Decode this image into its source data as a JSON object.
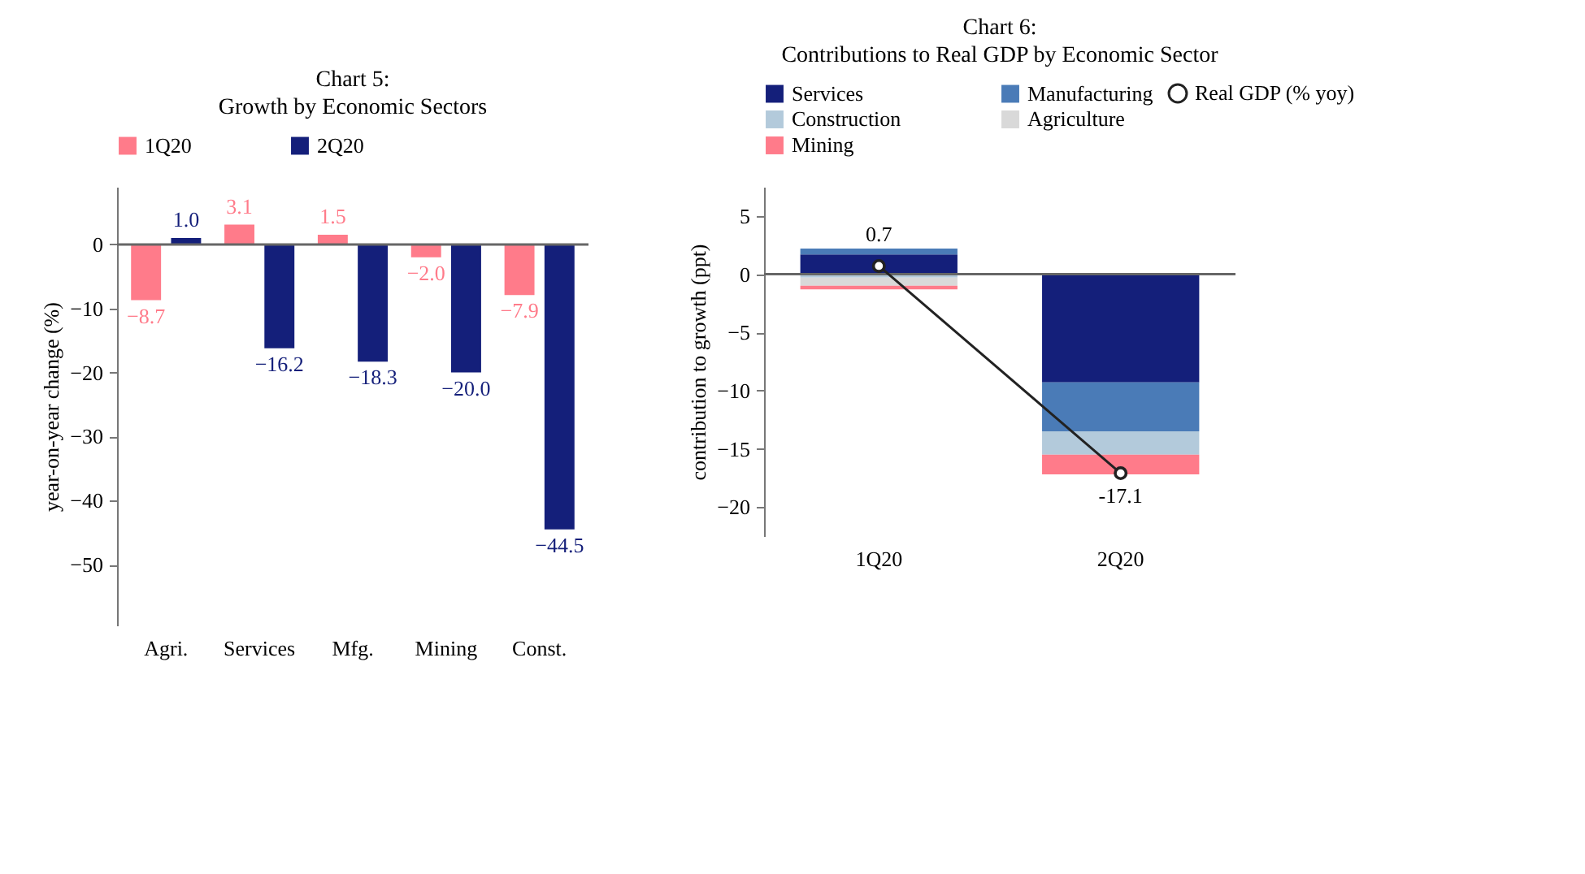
{
  "chart_data": [
    {
      "type": "bar",
      "title": "Chart 5:",
      "subtitle": "Growth by Economic Sectors",
      "ylabel": "year-on-year change (%)",
      "categories": [
        "Agri.",
        "Services",
        "Mfg.",
        "Mining",
        "Const."
      ],
      "series": [
        {
          "name": "1Q20",
          "color": "#ff7b8a",
          "values": [
            -8.7,
            3.1,
            1.5,
            -2.0,
            -7.9
          ],
          "value_labels": [
            "−8.7",
            "3.1",
            "1.5",
            "−2.0",
            "−7.9"
          ]
        },
        {
          "name": "2Q20",
          "color": "#141f7a",
          "values": [
            1.0,
            -16.2,
            -18.3,
            -20.0,
            -44.5
          ],
          "value_labels": [
            "1.0",
            "−16.2",
            "−18.3",
            "−20.0",
            "−44.5"
          ]
        }
      ],
      "ylim": [
        -59.5,
        9
      ],
      "yticks": [
        0,
        -10,
        -20,
        -30,
        -40,
        -50
      ],
      "legend": "top",
      "ref_lines": [
        {
          "axis": "y",
          "value": 0
        }
      ]
    },
    {
      "type": "bar",
      "title": "Chart 6:",
      "subtitle": "Contributions to Real GDP by Economic Sector",
      "ylabel": "contribution to growth (ppt)",
      "categories": [
        "1Q20",
        "2Q20"
      ],
      "stacked": true,
      "series": [
        {
          "name": "Services",
          "color": "#141f7a",
          "values": [
            1.7,
            -9.3
          ]
        },
        {
          "name": "Manufacturing",
          "color": "#4a7bb7",
          "values": [
            0.5,
            -4.2
          ]
        },
        {
          "name": "Construction",
          "color": "#b3cadb",
          "values": [
            -0.3,
            -2.0
          ]
        },
        {
          "name": "Agriculture",
          "color": "#d9d9d9",
          "values": [
            -0.7,
            0
          ]
        },
        {
          "name": "Mining",
          "color": "#ff7b8a",
          "values": [
            -0.3,
            -1.7
          ]
        },
        {
          "name": "Real GDP (% yoy)",
          "type": "line",
          "color": "#222222",
          "marker": "circle",
          "values": [
            0.7,
            -17.1
          ],
          "value_labels": [
            "0.7",
            "-17.1"
          ]
        }
      ],
      "ylim": [
        -22.5,
        7.5
      ],
      "yticks": [
        5,
        0,
        -5,
        -10,
        -15,
        -20
      ],
      "legend": "top",
      "ref_lines": [
        {
          "axis": "y",
          "value": 0
        }
      ]
    }
  ]
}
